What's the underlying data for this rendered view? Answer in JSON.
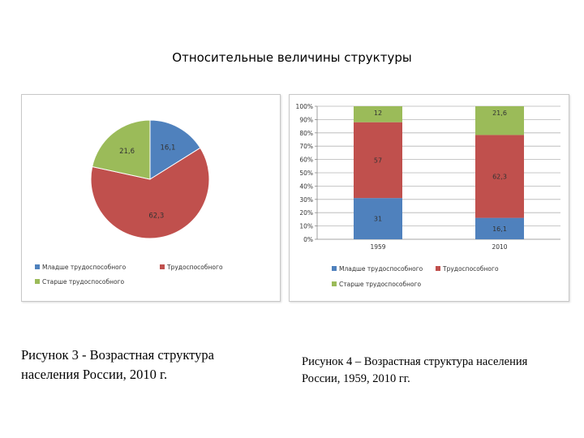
{
  "page": {
    "title": "Относительные величины структуры"
  },
  "captions": {
    "figure3": "Рисунок 3 -  Возрастная структура населения России, 2010 г.",
    "figure4": "Рисунок 4 – Возрастная структура населения России, 1959, 2010 гг."
  },
  "colors": {
    "younger": "#4f81bd",
    "working": "#c0504d",
    "older": "#9bbb59"
  },
  "chart_data": [
    {
      "type": "pie",
      "title": "",
      "slices": [
        {
          "name": "Младше трудоспособного",
          "value": 16.1,
          "label": "16,1"
        },
        {
          "name": "Трудоспособного",
          "value": 62.3,
          "label": "62,3"
        },
        {
          "name": "Старше трудоспособного",
          "value": 21.6,
          "label": "21,6"
        }
      ],
      "legend": {
        "position": "bottom",
        "entries": [
          "Младше трудоспособного",
          "Трудоспособного",
          "Старше трудоспособного"
        ]
      }
    },
    {
      "type": "bar",
      "stacked": true,
      "title": "",
      "categories": [
        "1959",
        "2010"
      ],
      "series": [
        {
          "name": "Младше трудоспособного",
          "values": [
            31,
            16.1
          ],
          "labels": [
            "31",
            "16,1"
          ]
        },
        {
          "name": "Трудоспособного",
          "values": [
            57,
            62.3
          ],
          "labels": [
            "57",
            "62,3"
          ]
        },
        {
          "name": "Старше трудоспособного",
          "values": [
            12,
            21.6
          ],
          "labels": [
            "12",
            "21,6"
          ]
        }
      ],
      "yticks": [
        "0%",
        "10%",
        "20%",
        "30%",
        "40%",
        "50%",
        "60%",
        "70%",
        "80%",
        "90%",
        "100%"
      ],
      "ylim": [
        0,
        100
      ],
      "grid": true,
      "legend": {
        "position": "bottom",
        "entries": [
          "Младше трудоспособного",
          "Трудоспособного",
          "Старше трудоспособного"
        ]
      }
    }
  ]
}
